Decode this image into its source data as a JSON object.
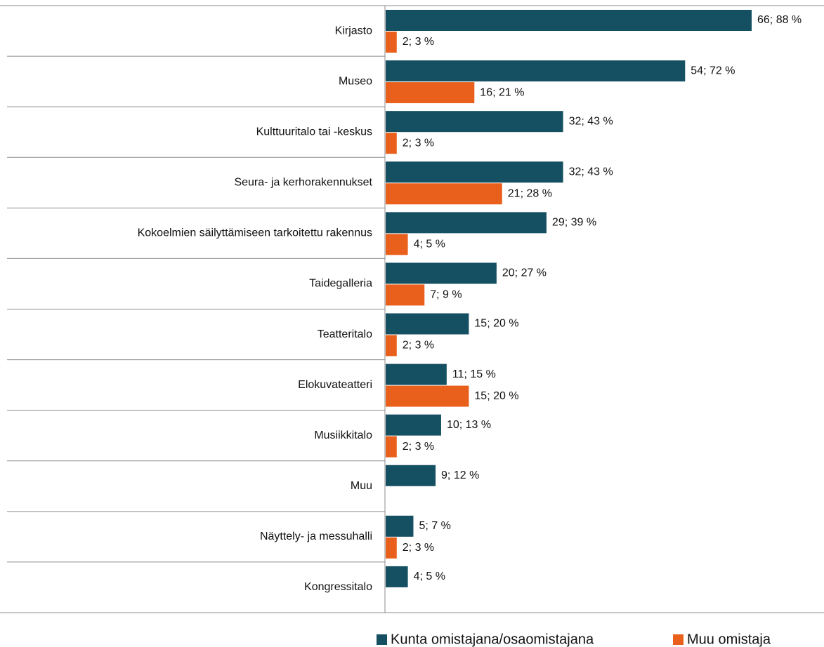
{
  "chart_data": {
    "type": "bar",
    "orientation": "horizontal",
    "categories": [
      "Kirjasto",
      "Museo",
      "Kulttuuritalo tai -keskus",
      "Seura- ja kerhorakennukset",
      "Kokoelmien säilyttämiseen tarkoitettu rakennus",
      "Taidegalleria",
      "Teatteritalo",
      "Elokuvateatteri",
      "Musiikkitalo",
      "Muu",
      "Näyttely- ja messuhalli",
      "Kongressitalo"
    ],
    "series": [
      {
        "name": "Kunta omistajana/osaomistajana",
        "color": "#154f62",
        "values": [
          66,
          54,
          32,
          32,
          29,
          20,
          15,
          11,
          10,
          9,
          5,
          4
        ],
        "value_labels": [
          "66; 88 %",
          "54; 72 %",
          "32; 43 %",
          "32; 43 %",
          "29; 39 %",
          "20; 27 %",
          "15; 20 %",
          "11; 15 %",
          "10; 13 %",
          "9; 12 %",
          "5; 7 %",
          "4; 5 %"
        ]
      },
      {
        "name": "Muu omistaja",
        "color": "#e8601c",
        "values": [
          2,
          16,
          2,
          21,
          4,
          7,
          2,
          15,
          2,
          null,
          2,
          null
        ],
        "value_labels": [
          "2; 3 %",
          "16; 21 %",
          "2; 3 %",
          "21; 28 %",
          "4; 5 %",
          "7; 9 %",
          "2; 3 %",
          "15; 20 %",
          "2; 3 %",
          null,
          "2; 3 %",
          null
        ]
      }
    ],
    "legend": "bottom"
  }
}
